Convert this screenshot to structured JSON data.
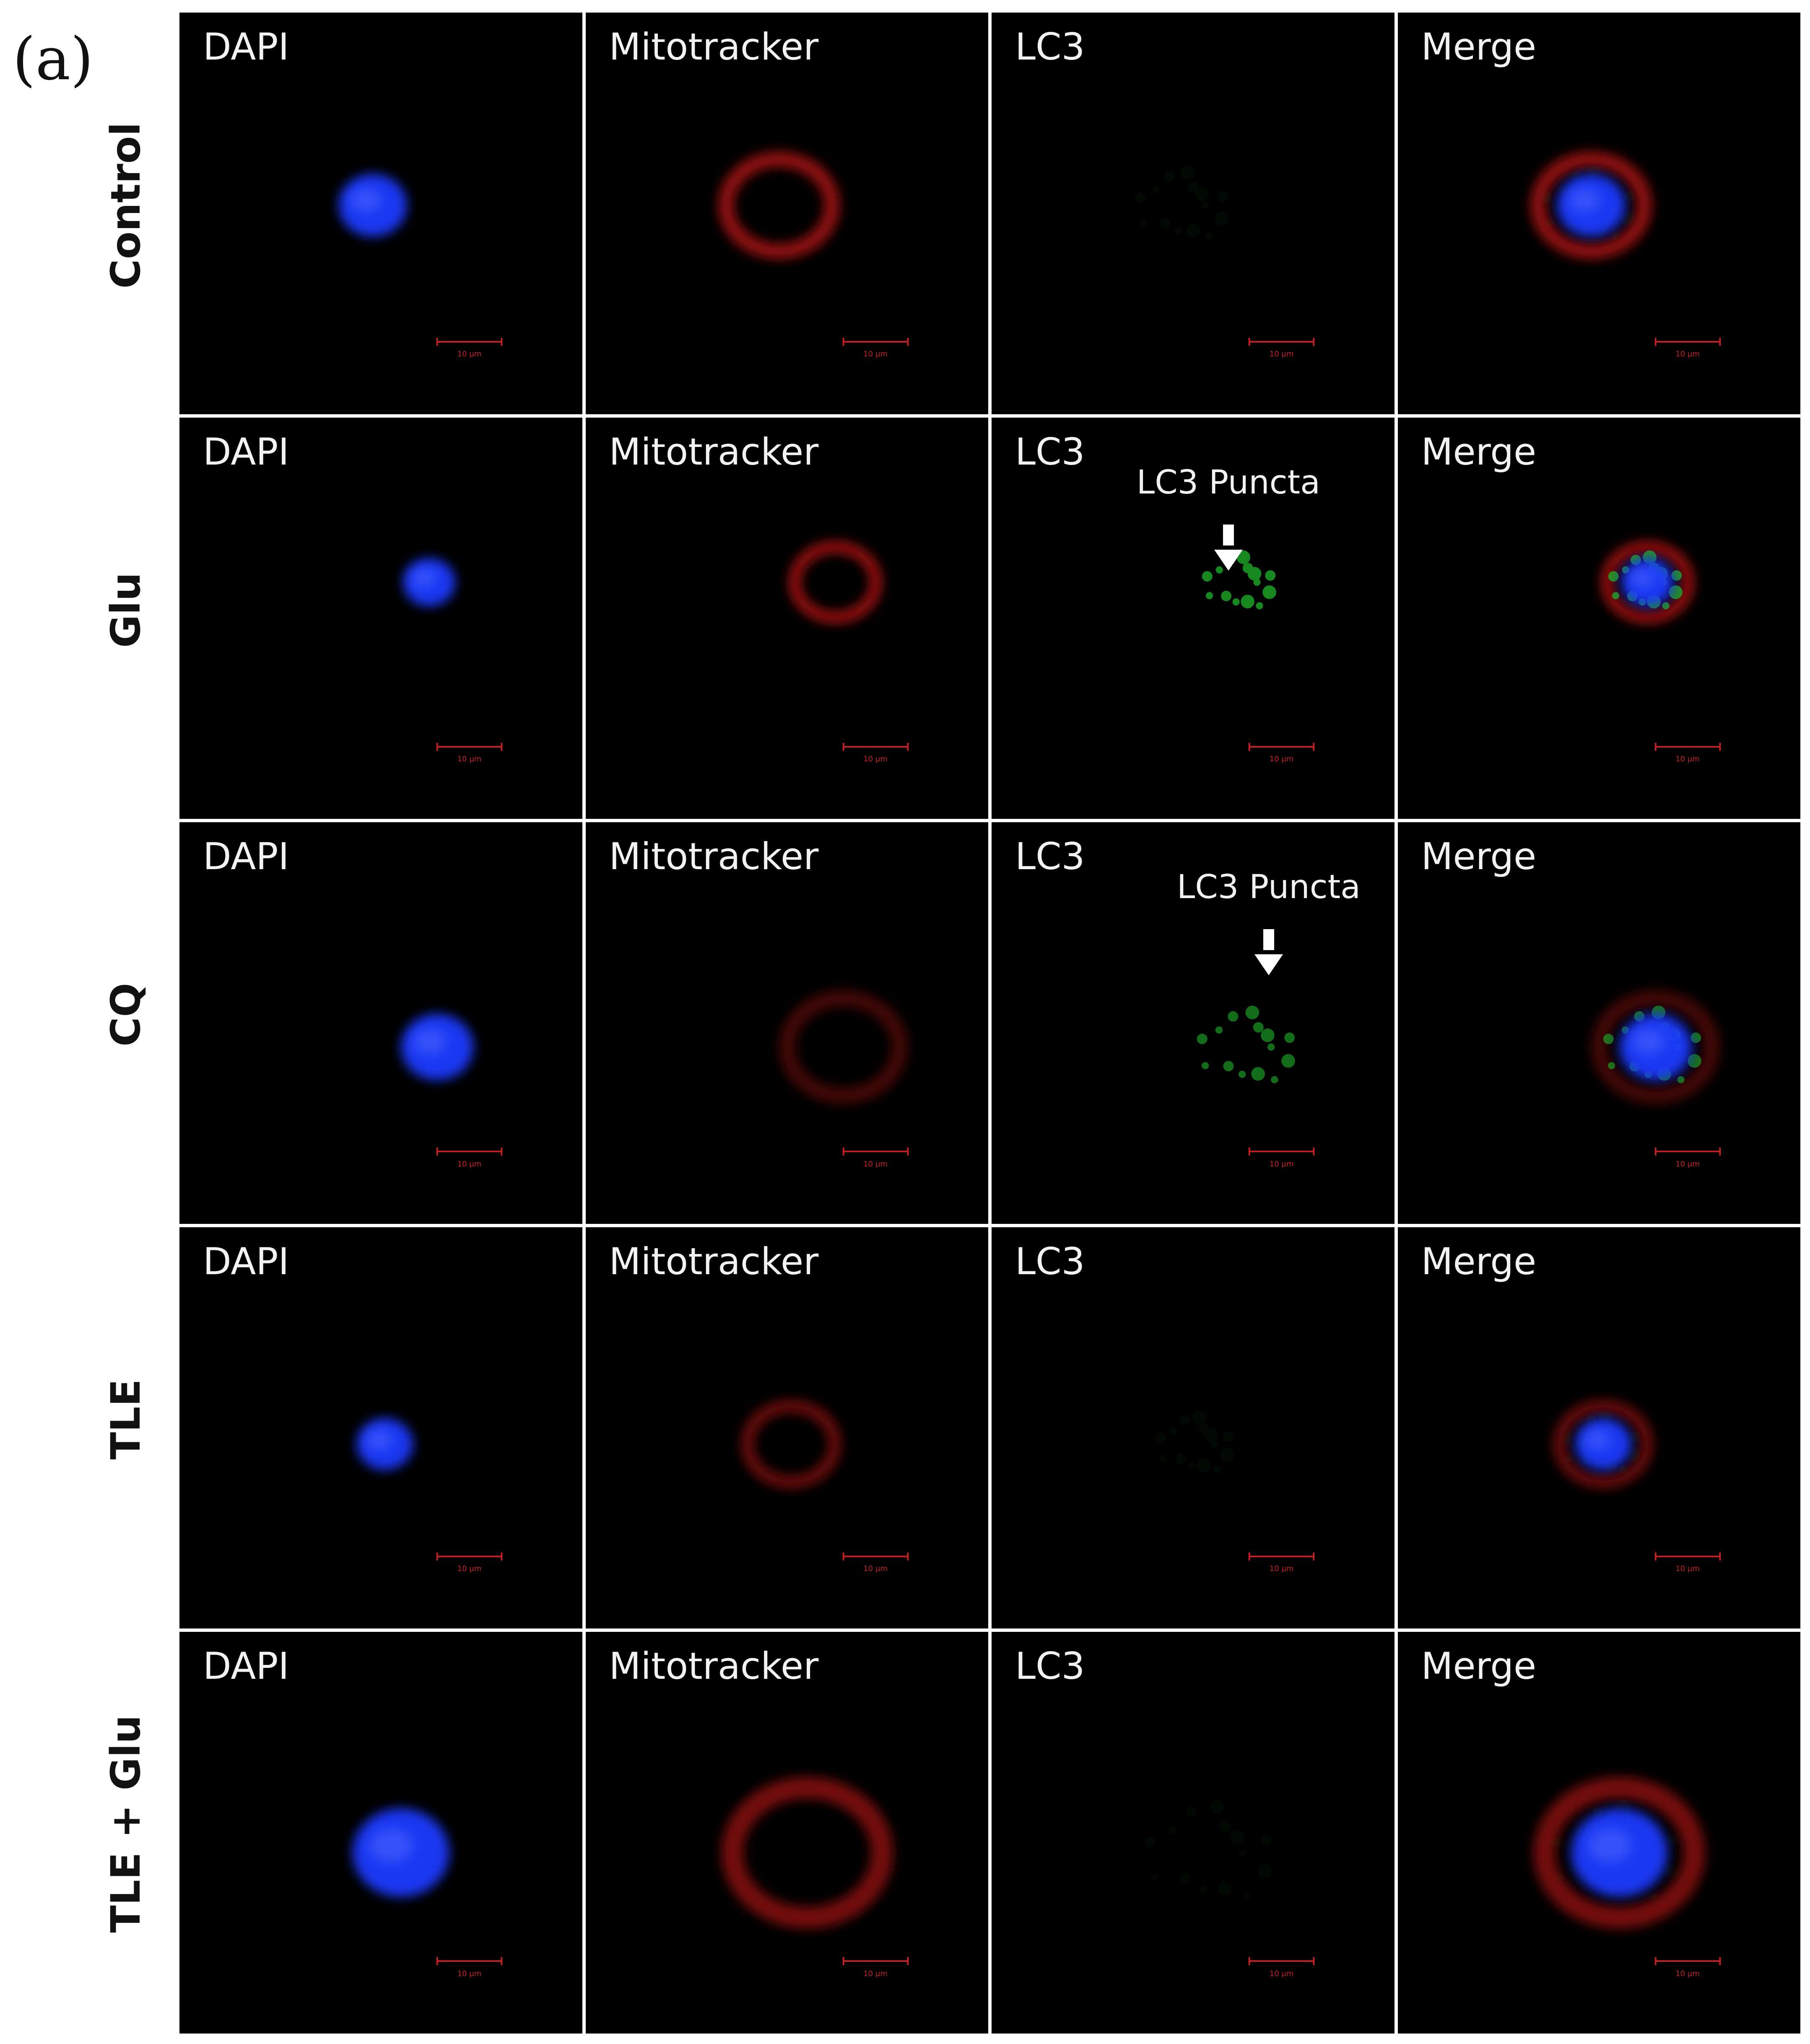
{
  "panel_label": "(a)",
  "rows": [
    {
      "label": "Control"
    },
    {
      "label": "Glu"
    },
    {
      "label": "CQ"
    },
    {
      "label": "TLE"
    },
    {
      "label": "TLE + Glu"
    }
  ],
  "channels": [
    {
      "title": "DAPI"
    },
    {
      "title": "Mitotracker"
    },
    {
      "title": "LC3"
    },
    {
      "title": "Merge"
    }
  ],
  "annotation_label": "LC3 Puncta",
  "scale_bar_label": "10 μm",
  "colors": {
    "dapi": "#1f3bff",
    "mitotracker": "#c41818",
    "lc3": "#1fb52a",
    "scale_bar": "#c62020"
  }
}
